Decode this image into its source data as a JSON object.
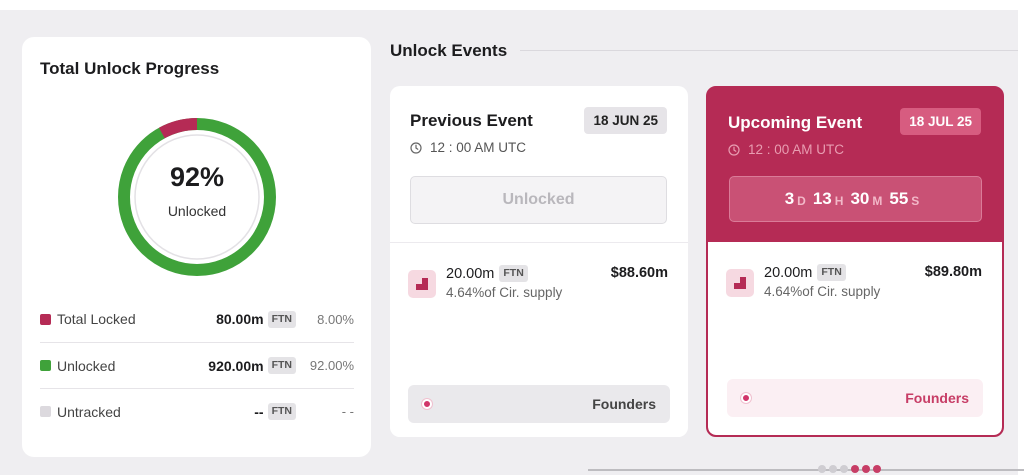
{
  "progress": {
    "title": "Total Unlock Progress",
    "percent_text": "92%",
    "percent_label": "Unlocked",
    "unlocked_fraction": 0.92,
    "colors": {
      "locked": "#b52b55",
      "unlocked": "#3fa23a",
      "untracked": "#dcd9de"
    },
    "legend": [
      {
        "name": "Total Locked",
        "value": "80.00m",
        "token": "FTN",
        "pct": "8.00%"
      },
      {
        "name": "Unlocked",
        "value": "920.00m",
        "token": "FTN",
        "pct": "92.00%"
      },
      {
        "name": "Untracked",
        "value": "--",
        "token": "FTN",
        "pct": "- -"
      }
    ]
  },
  "events": {
    "section_title": "Unlock Events",
    "previous": {
      "title": "Previous Event",
      "date": "18 JUN 25",
      "time": "12 : 00 AM UTC",
      "status": "Unlocked",
      "amount": "20.00m",
      "token": "FTN",
      "supply": "4.64%of Cir. supply",
      "usd": "$88.60m",
      "category": "Founders"
    },
    "upcoming": {
      "title": "Upcoming Event",
      "date": "18 JUL 25",
      "time": "12 : 00 AM UTC",
      "countdown": {
        "d": "3",
        "d_unit": "D",
        "h": "13",
        "h_unit": "H",
        "m": "30",
        "m_unit": "M",
        "s": "55",
        "s_unit": "S"
      },
      "amount": "20.00m",
      "token": "FTN",
      "supply": "4.64%of Cir. supply",
      "usd": "$89.80m",
      "category": "Founders"
    }
  },
  "pager": {
    "active_index": 3,
    "count": 6,
    "active_color": "#c73d66",
    "inactive_color": "#cfcdd2"
  }
}
